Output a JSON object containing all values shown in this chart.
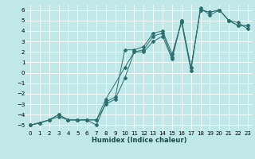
{
  "title": "",
  "xlabel": "Humidex (Indice chaleur)",
  "ylabel": "",
  "bg_color": "#c0e8e8",
  "line_color": "#2e6e6e",
  "grid_color": "#ffffff",
  "xlim": [
    -0.5,
    23.5
  ],
  "ylim": [
    -5.5,
    6.5
  ],
  "xticks": [
    0,
    1,
    2,
    3,
    4,
    5,
    6,
    7,
    8,
    9,
    10,
    11,
    12,
    13,
    14,
    15,
    16,
    17,
    18,
    19,
    20,
    21,
    22,
    23
  ],
  "yticks": [
    -5,
    -4,
    -3,
    -2,
    -1,
    0,
    1,
    2,
    3,
    4,
    5,
    6
  ],
  "series1_x": [
    0,
    1,
    2,
    3,
    4,
    5,
    6,
    7,
    8,
    9,
    10,
    11,
    12,
    13,
    14,
    15,
    16,
    17,
    18,
    19,
    20,
    21,
    22,
    23
  ],
  "series1_y": [
    -5.0,
    -4.8,
    -4.5,
    -4.2,
    -4.5,
    -4.5,
    -4.5,
    -4.5,
    -3.0,
    -2.5,
    -0.5,
    2.0,
    2.2,
    3.5,
    3.8,
    1.5,
    5.0,
    0.5,
    6.0,
    5.8,
    6.0,
    5.0,
    4.5,
    4.5
  ],
  "series2_x": [
    0,
    1,
    2,
    3,
    4,
    5,
    6,
    7,
    8,
    9,
    10,
    11,
    12,
    13,
    14,
    15,
    16,
    17,
    18,
    19,
    20,
    21,
    22,
    23
  ],
  "series2_y": [
    -5.0,
    -4.8,
    -4.5,
    -4.0,
    -4.5,
    -4.5,
    -4.5,
    -5.0,
    -2.8,
    -2.3,
    2.2,
    2.2,
    2.5,
    3.8,
    4.0,
    1.8,
    4.8,
    0.2,
    6.2,
    5.5,
    6.0,
    5.0,
    4.8,
    4.2
  ],
  "series3_x": [
    0,
    2,
    3,
    4,
    5,
    6,
    7,
    8,
    10,
    11,
    12,
    13,
    14,
    15,
    16,
    17,
    18,
    19,
    20,
    21,
    22,
    23
  ],
  "series3_y": [
    -5.0,
    -4.5,
    -4.0,
    -4.5,
    -4.5,
    -4.5,
    -4.5,
    -2.5,
    0.5,
    2.0,
    2.0,
    3.0,
    3.5,
    1.3,
    5.0,
    0.5,
    6.0,
    5.8,
    6.0,
    5.0,
    4.5,
    4.5
  ],
  "xlabel_fontsize": 6.0,
  "tick_fontsize": 5.0,
  "lw": 0.7,
  "ms": 2.0
}
